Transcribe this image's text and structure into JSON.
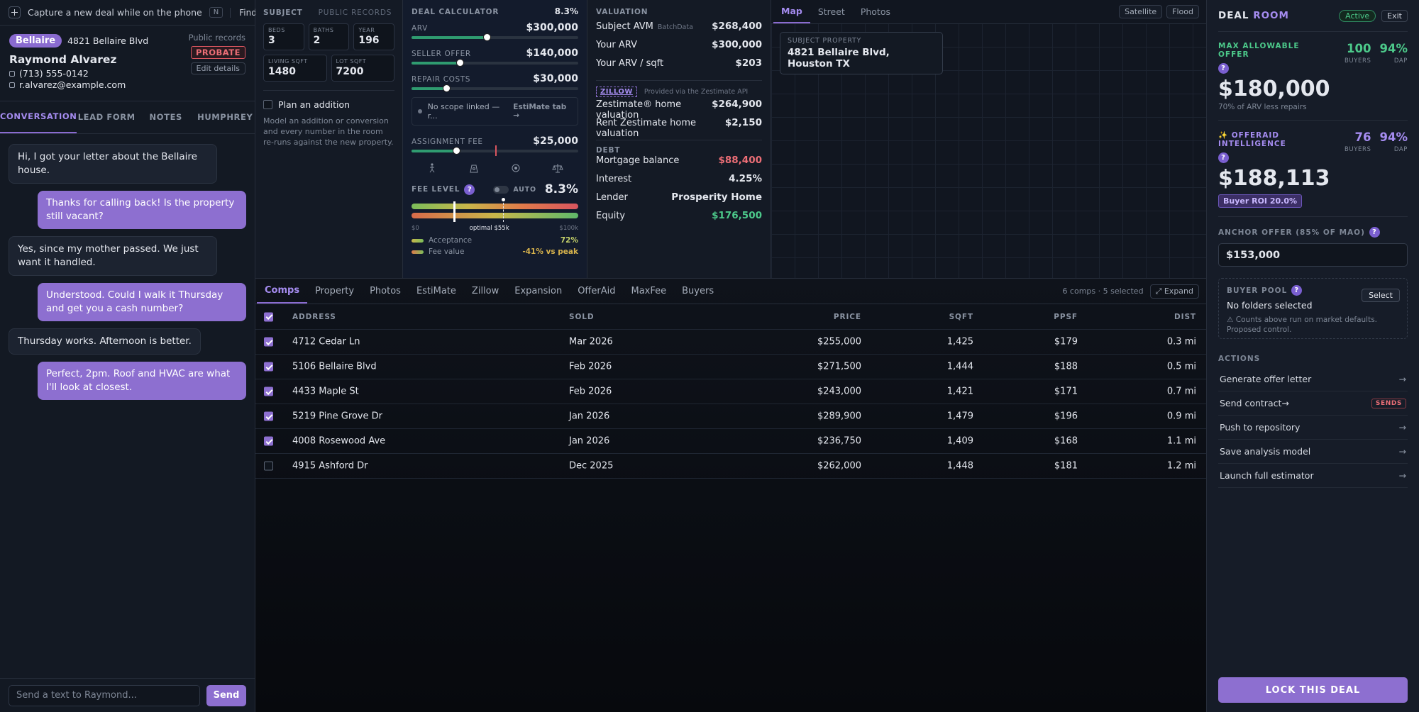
{
  "quick_capture": {
    "placeholder": "Capture a new deal while on the phone",
    "shortcut": "N",
    "find": "Find"
  },
  "contact": {
    "tag": "Bellaire",
    "address": "4821 Bellaire Blvd",
    "name": "Raymond Alvarez",
    "phone": "(713) 555-0142",
    "email": "r.alvarez@example.com",
    "source": "Public records",
    "status": "PROBATE",
    "edit": "Edit details"
  },
  "left_tabs": {
    "active": 0,
    "items": [
      "CONVERSATION",
      "LEAD FORM",
      "NOTES",
      "HUMPHREY"
    ]
  },
  "messages": [
    {
      "from": "lead",
      "text": "Hi, I got your letter about the Bellaire house."
    },
    {
      "from": "agent",
      "text": "Thanks for calling back! Is the property still vacant?"
    },
    {
      "from": "lead",
      "text": "Yes, since my mother passed. We just want it handled."
    },
    {
      "from": "agent",
      "text": "Understood. Could I walk it Thursday and get you a cash number?"
    },
    {
      "from": "lead",
      "text": "Thursday works. Afternoon is better."
    },
    {
      "from": "agent",
      "text": "Perfect, 2pm. Roof and HVAC are what I'll look at closest."
    }
  ],
  "composer": {
    "placeholder": "Send a text to Raymond...",
    "send": "Send"
  },
  "subject": {
    "title": "SUBJECT",
    "source": "PUBLIC RECORDS",
    "fields": [
      {
        "label": "BEDS",
        "value": "3"
      },
      {
        "label": "BATHS",
        "value": "2"
      },
      {
        "label": "YEAR",
        "value": "196"
      },
      {
        "label": "LIVING SQFT",
        "value": "1480"
      },
      {
        "label": "LOT SQFT",
        "value": "7200"
      }
    ],
    "addition": {
      "label": "Plan an addition",
      "note": "Model an addition or conversion and every number in the room re-runs against the new property."
    }
  },
  "calculator": {
    "title": "DEAL CALCULATOR",
    "fee_pct": "8.3%",
    "rows": [
      {
        "label": "ARV",
        "value": "$300,000"
      },
      {
        "label": "SELLER OFFER",
        "value": "$140,000"
      },
      {
        "label": "REPAIR COSTS",
        "value": "$30,000"
      }
    ],
    "scope": {
      "text": "No scope linked — r...",
      "link": "EstiMate tab →"
    },
    "assignment": {
      "label": "ASSIGNMENT FEE",
      "value": "$25,000"
    },
    "fee_level": {
      "label": "FEE LEVEL",
      "help": "?",
      "auto": "AUTO",
      "value": "8.3%",
      "min": "$0",
      "optimal": "optimal $55k",
      "max": "$100k",
      "legend": [
        {
          "label": "Acceptance",
          "value": "72%"
        },
        {
          "label": "Fee value",
          "value": "-41% vs peak"
        }
      ]
    }
  },
  "valuation": {
    "title": "VALUATION",
    "rows": [
      {
        "label": "Subject AVM",
        "source": "BatchData",
        "value": "$268,400"
      },
      {
        "label": "Your ARV",
        "value": "$300,000"
      },
      {
        "label": "Your ARV / sqft",
        "value": "$203"
      }
    ],
    "zillow": {
      "badge": "ZILLOW",
      "note": "Provided via the Zestimate API",
      "rows": [
        {
          "label": "Zestimate® home valuation",
          "value": "$264,900"
        },
        {
          "label": "Rent Zestimate home valuation",
          "value": "$2,150"
        }
      ]
    },
    "debt": {
      "title": "DEBT",
      "rows": [
        {
          "label": "Mortgage balance",
          "value": "$88,400",
          "tone": "negative"
        },
        {
          "label": "Interest",
          "value": "4.25%"
        },
        {
          "label": "Lender",
          "value": "Prosperity Home"
        },
        {
          "label": "Equity",
          "value": "$176,500",
          "tone": "positive"
        }
      ]
    }
  },
  "map": {
    "tabs": [
      "Map",
      "Street",
      "Photos"
    ],
    "active": 0,
    "layers": [
      "Satellite",
      "Flood"
    ],
    "card": {
      "label": "SUBJECT PROPERTY",
      "address": "4821 Bellaire Blvd, Houston TX"
    }
  },
  "detail_tabs": {
    "active": 0,
    "items": [
      "Comps",
      "Property",
      "Photos",
      "EstiMate",
      "Zillow",
      "Expansion",
      "OfferAid",
      "MaxFee",
      "Buyers"
    ],
    "summary": "6 comps · 5 selected",
    "expand": "⤢ Expand"
  },
  "comps": {
    "header_checked": true,
    "columns": [
      "ADDRESS",
      "SOLD",
      "PRICE",
      "SQFT",
      "PPSF",
      "DIST"
    ],
    "rows": [
      {
        "selected": true,
        "cells": [
          "4712 Cedar Ln",
          "Mar 2026",
          "$255,000",
          "1,425",
          "$179",
          "0.3 mi"
        ]
      },
      {
        "selected": true,
        "cells": [
          "5106 Bellaire Blvd",
          "Feb 2026",
          "$271,500",
          "1,444",
          "$188",
          "0.5 mi"
        ]
      },
      {
        "selected": true,
        "cells": [
          "4433 Maple St",
          "Feb 2026",
          "$243,000",
          "1,421",
          "$171",
          "0.7 mi"
        ]
      },
      {
        "selected": true,
        "cells": [
          "5219 Pine Grove Dr",
          "Jan 2026",
          "$289,900",
          "1,479",
          "$196",
          "0.9 mi"
        ]
      },
      {
        "selected": true,
        "cells": [
          "4008 Rosewood Ave",
          "Jan 2026",
          "$236,750",
          "1,409",
          "$168",
          "1.1 mi"
        ]
      },
      {
        "selected": false,
        "cells": [
          "4915 Ashford Dr",
          "Dec 2025",
          "$262,000",
          "1,448",
          "$181",
          "1.2 mi"
        ]
      }
    ]
  },
  "deal_room": {
    "title": "DEAL",
    "title_accent": "ROOM",
    "status": "Active",
    "exit": "Exit",
    "mao": {
      "label": "MAX ALLOWABLE OFFER",
      "help": "?",
      "value": "$180,000",
      "note": "70% of ARV less repairs",
      "stats": [
        {
          "value": "100",
          "label": "BUYERS"
        },
        {
          "value": "94%",
          "label": "DAP"
        }
      ]
    },
    "offeraid": {
      "label": "✨ OFFERAID INTELLIGENCE",
      "help": "?",
      "value": "$188,113",
      "badge": "Buyer ROI 20.0%",
      "stats": [
        {
          "value": "76",
          "label": "BUYERS"
        },
        {
          "value": "94%",
          "label": "DAP"
        }
      ]
    },
    "anchor": {
      "label": "ANCHOR OFFER (85% OF MAO)",
      "help": "?",
      "value": "$153,000"
    },
    "buyer_pool": {
      "label": "BUYER POOL",
      "help": "?",
      "select": "Select",
      "status": "No folders selected",
      "note": "⚠ Counts above run on market defaults. Proposed control."
    },
    "actions": {
      "title": "ACTIONS",
      "items": [
        {
          "label": "Generate offer letter",
          "arrow": "→"
        },
        {
          "label": "Send contract→",
          "badge": "SENDS"
        },
        {
          "label": "Push to repository",
          "arrow": "→"
        },
        {
          "label": "Save analysis model",
          "arrow": "→"
        },
        {
          "label": "Launch full estimator",
          "arrow": "→"
        }
      ]
    },
    "lock": "LOCK THIS DEAL"
  }
}
